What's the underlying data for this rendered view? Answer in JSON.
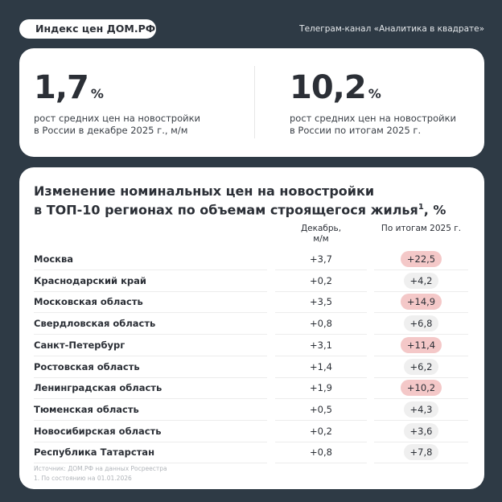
{
  "header": {
    "badge": "Индекс цен ДОМ.РФ",
    "channel": "Телеграм-канал «Аналитика в квадрате»"
  },
  "stats": [
    {
      "value": "1,7",
      "unit": "%",
      "line1": "рост средних цен на новостройки",
      "line2": "в России в декабре 2025 г., м/м"
    },
    {
      "value": "10,2",
      "unit": "%",
      "line1": "рост средних цен на новостройки",
      "line2": "в России по итогам 2025 г."
    }
  ],
  "table": {
    "title_line1": "Изменение номинальных цен на новостройки",
    "title_line2": "в ТОП-10 регионах по объемам строящегося жилья",
    "title_sup": "1",
    "title_suffix": ", %",
    "col_dec_line1": "Декабрь,",
    "col_dec_line2": "м/м",
    "col_year": "По итогам 2025 г.",
    "highlight_color": "#f4c8c8",
    "rows": [
      {
        "region": "Москва",
        "dec": "+3,7",
        "year": "+22,5",
        "highlight": true
      },
      {
        "region": "Краснодарский край",
        "dec": "+0,2",
        "year": "+4,2",
        "highlight": false
      },
      {
        "region": "Московская область",
        "dec": "+3,5",
        "year": "+14,9",
        "highlight": true
      },
      {
        "region": "Свердловская область",
        "dec": "+0,8",
        "year": "+6,8",
        "highlight": false
      },
      {
        "region": "Санкт-Петербург",
        "dec": "+3,1",
        "year": "+11,4",
        "highlight": true
      },
      {
        "region": "Ростовская область",
        "dec": "+1,4",
        "year": "+6,2",
        "highlight": false
      },
      {
        "region": "Ленинградская область",
        "dec": "+1,9",
        "year": "+10,2",
        "highlight": true
      },
      {
        "region": "Тюменская область",
        "dec": "+0,5",
        "year": "+4,3",
        "highlight": false
      },
      {
        "region": "Новосибирская область",
        "dec": "+0,2",
        "year": "+3,6",
        "highlight": false
      },
      {
        "region": "Республика Татарстан",
        "dec": "+0,8",
        "year": "+7,8",
        "highlight": false
      }
    ],
    "source": "Источник: ДОМ.РФ на данных Росреестра",
    "footnote": "1. По состоянию на 01.01.2026"
  }
}
